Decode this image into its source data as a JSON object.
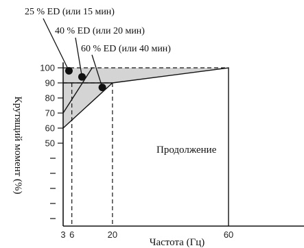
{
  "chart_data": {
    "type": "area",
    "xlabel": "Частота (Гц)",
    "ylabel": "Крутящий момент (%)",
    "x_ticks": [
      3,
      6,
      20,
      60
    ],
    "y_ticks": [
      100,
      90,
      80,
      70,
      60,
      50
    ],
    "y_blank_ticks": [
      40,
      30,
      20,
      10,
      0
    ],
    "region_label": "Продолжение",
    "xlim": [
      3,
      86
    ],
    "ylim": [
      -5,
      100
    ],
    "grid": false,
    "rated_curve": {
      "x": [
        3,
        20,
        60,
        60
      ],
      "y": [
        90,
        90,
        100,
        -5
      ],
      "style": "solid"
    },
    "series": [
      {
        "name": "25 % ED (или 15 мин)",
        "x": [
          3,
          3
        ],
        "y": [
          100,
          100
        ]
      },
      {
        "name": "40 % ED (или 20 мин)",
        "x": [
          3,
          13
        ],
        "y": [
          70,
          100
        ]
      },
      {
        "name": "60 % ED (или 40 мин)",
        "x": [
          3,
          20
        ],
        "y": [
          60,
          90
        ]
      }
    ],
    "markers": [
      {
        "series": 0,
        "x": 5,
        "y": 98
      },
      {
        "series": 1,
        "x": 9.5,
        "y": 94
      },
      {
        "series": 2,
        "x": 16.5,
        "y": 87
      }
    ],
    "reference_lines": [
      {
        "x": [
          3,
          60
        ],
        "y": [
          100,
          100
        ],
        "style": "dashed"
      },
      {
        "x": [
          3,
          20
        ],
        "y": [
          90,
          90
        ],
        "style": "dashed"
      },
      {
        "x": [
          6,
          6
        ],
        "y": [
          90,
          -5
        ],
        "style": "dashed"
      },
      {
        "x": [
          20,
          20
        ],
        "y": [
          90,
          -5
        ],
        "style": "dashed"
      }
    ],
    "colors": {
      "shade": "#d4d4d4",
      "line": "#111111"
    }
  }
}
